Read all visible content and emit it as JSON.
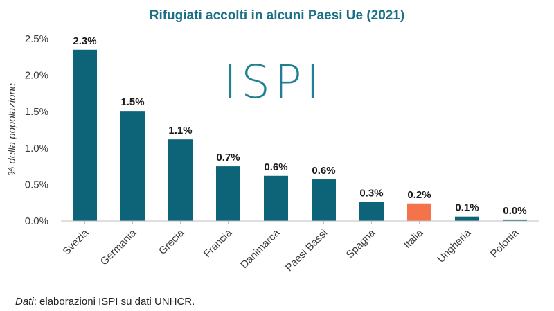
{
  "colors": {
    "title": "#1b6f86",
    "bar": "#0d6478",
    "highlight": "#f4734a",
    "axis": "#bfbfbf",
    "watermark": "#1f7f93"
  },
  "watermark": "ISPI",
  "source": {
    "label": "Dati",
    "text": ": elaborazioni ISPI su dati UNHCR."
  },
  "chart_data": {
    "type": "bar",
    "title": "Rifugiati accolti in alcuni Paesi Ue (2021)",
    "ylabel": "% della popolazione",
    "xlabel": "",
    "ylim": [
      0,
      2.5
    ],
    "yticks": [
      "0.0%",
      "0.5%",
      "1.0%",
      "1.5%",
      "2.0%",
      "2.5%"
    ],
    "grid": false,
    "categories": [
      "Svezia",
      "Germania",
      "Grecia",
      "Francia",
      "Danimarca",
      "Paesi Bassi",
      "Spagna",
      "Italia",
      "Ungheria",
      "Polonia"
    ],
    "values": [
      2.35,
      1.51,
      1.12,
      0.75,
      0.62,
      0.57,
      0.26,
      0.24,
      0.06,
      0.02
    ],
    "data_labels": [
      "2.3%",
      "1.5%",
      "1.1%",
      "0.7%",
      "0.6%",
      "0.6%",
      "0.3%",
      "0.2%",
      "0.1%",
      "0.0%"
    ],
    "highlight": "Italia"
  }
}
